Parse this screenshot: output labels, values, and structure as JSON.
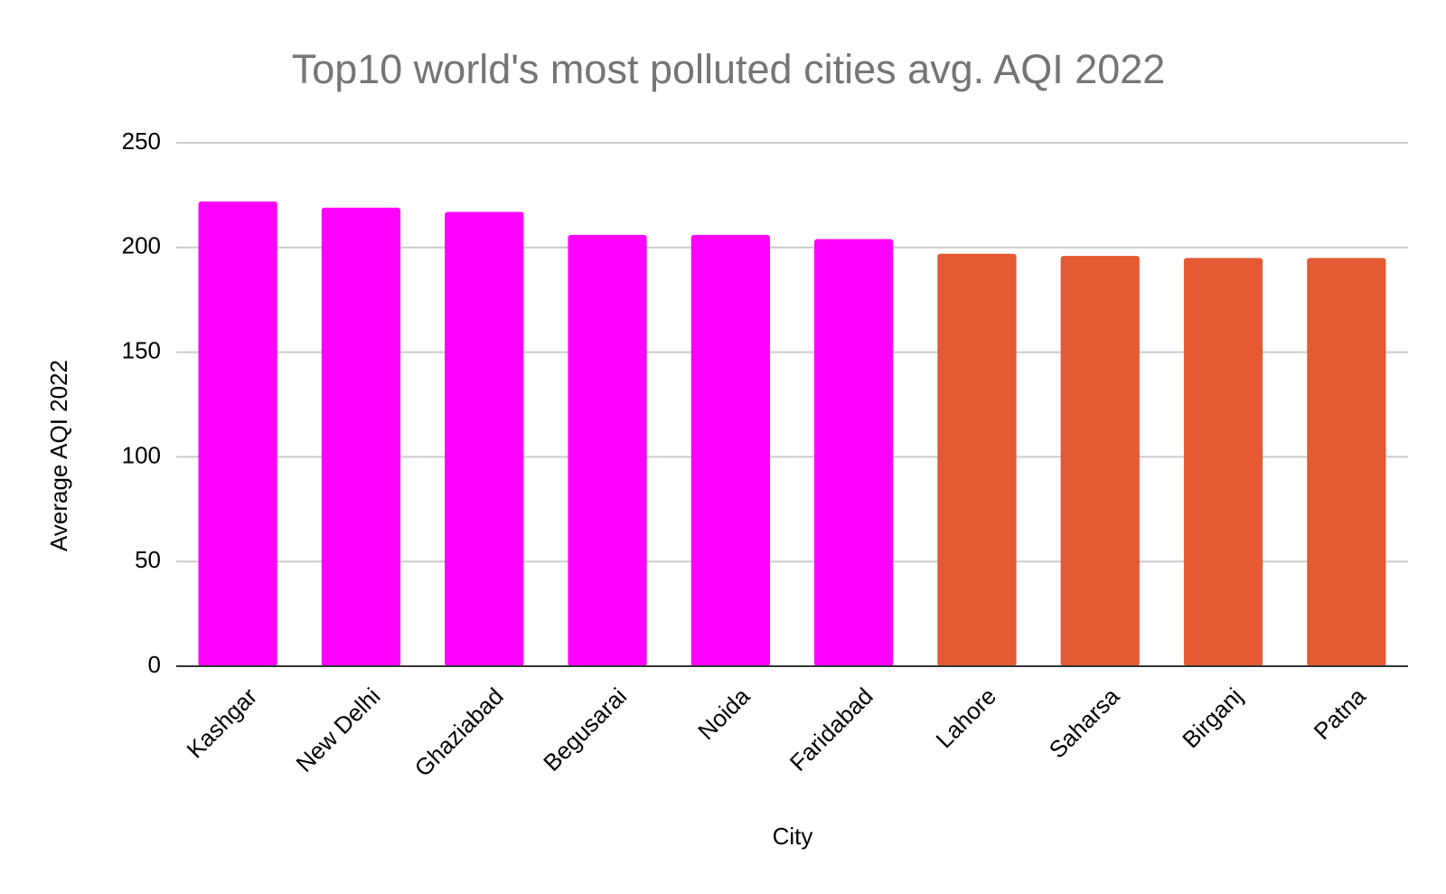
{
  "chart_data": {
    "type": "bar",
    "title": "Top10 world's most polluted cities avg. AQI 2022",
    "x_label": "City",
    "y_label": "Average AQI 2022",
    "categories": [
      "Kashgar",
      "New Delhi",
      "Ghaziabad",
      "Begusarai",
      "Noida",
      "Faridabad",
      "Lahore",
      "Saharsa",
      "Birganj",
      "Patna"
    ],
    "values": [
      222,
      219,
      217,
      206,
      206,
      204,
      197,
      196,
      195,
      195
    ],
    "colors": [
      "#ff00ff",
      "#ff00ff",
      "#ff00ff",
      "#ff00ff",
      "#ff00ff",
      "#ff00ff",
      "#e45a33",
      "#e45a33",
      "#e45a33",
      "#e45a33"
    ],
    "ylim": [
      0,
      250
    ],
    "yticks": [
      0,
      50,
      100,
      150,
      200,
      250
    ],
    "grid": true
  }
}
